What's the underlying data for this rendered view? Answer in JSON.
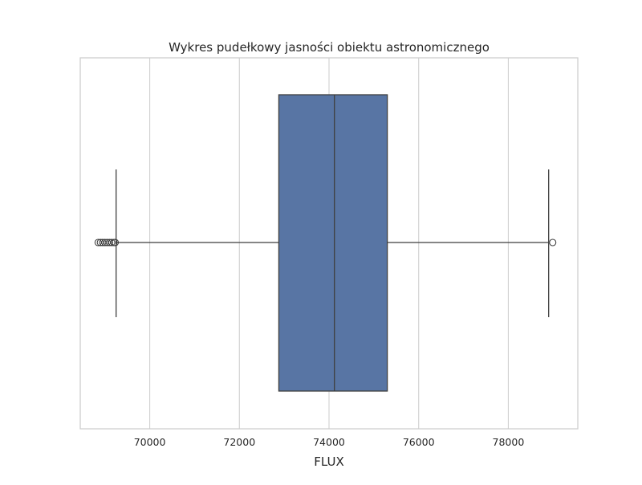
{
  "chart_data": {
    "type": "box",
    "title": "Wykres pudełkowy jasności obiektu astronomicznego",
    "xlabel": "FLUX",
    "ylabel": "",
    "xlim": [
      68450,
      79550
    ],
    "xticks": [
      70000,
      72000,
      74000,
      76000,
      78000
    ],
    "xtick_labels": [
      "70000",
      "72000",
      "74000",
      "76000",
      "78000"
    ],
    "grid": "vertical",
    "orientation": "horizontal",
    "box": {
      "whisker_low": 69250,
      "q1": 72880,
      "median": 74120,
      "q3": 75300,
      "whisker_high": 78900
    },
    "outliers": [
      68850,
      68900,
      68950,
      69000,
      69050,
      69100,
      69150,
      69200,
      69230,
      78990
    ],
    "colors": {
      "box_fill": "#5875a4",
      "line": "#3f3f3f",
      "grid": "#d0d0d0",
      "frame": "#cccccc"
    }
  }
}
